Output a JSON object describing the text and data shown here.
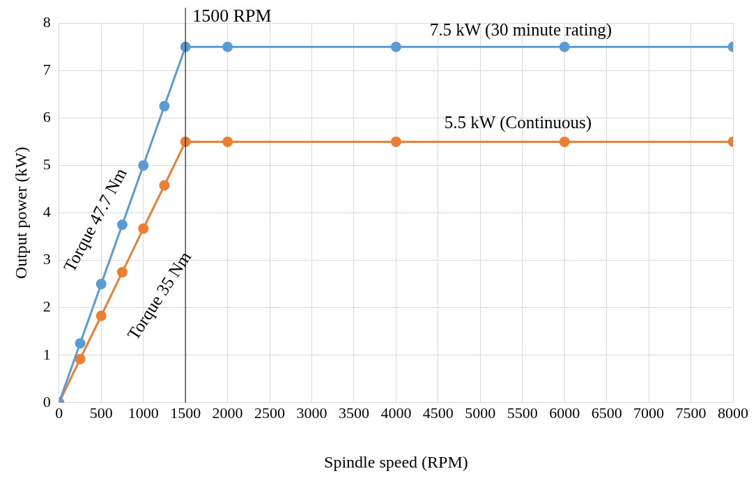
{
  "chart_data": {
    "type": "line",
    "xlabel": "Spindle speed (RPM)",
    "ylabel": "Output power (kW)",
    "x": [
      0,
      250,
      500,
      750,
      1000,
      1250,
      1500,
      2000,
      4000,
      6000,
      8000
    ],
    "series": [
      {
        "color": "#5b9bd5",
        "values": [
          0,
          1.25,
          2.5,
          3.75,
          5,
          6.25,
          7.5,
          7.5,
          7.5,
          7.5,
          7.5
        ]
      },
      {
        "color": "#ed7d31",
        "values": [
          0,
          0.92,
          1.83,
          2.75,
          3.67,
          4.58,
          5.5,
          5.5,
          5.5,
          5.5,
          5.5
        ]
      }
    ],
    "xlim": [
      0,
      8000
    ],
    "xticks": [
      0,
      500,
      1000,
      1500,
      2000,
      2500,
      3000,
      3500,
      4000,
      4500,
      5000,
      5500,
      6000,
      6500,
      7000,
      7500,
      8000
    ],
    "ylim": [
      0,
      8
    ],
    "yticks": [
      0,
      1,
      2,
      3,
      4,
      5,
      6,
      7,
      8
    ],
    "grid": true,
    "legend": false,
    "marker": "circle",
    "line_style": "solid",
    "ref_lines": [
      {
        "axis": "x",
        "value": 1500,
        "label": "1500 RPM",
        "color": "#000000"
      }
    ],
    "annotations": [
      "7.5 kW (30 minute rating)",
      "5.5 kW (Continuous)",
      "Torque 47.7 Nm",
      "Torque 35 Nm"
    ]
  }
}
